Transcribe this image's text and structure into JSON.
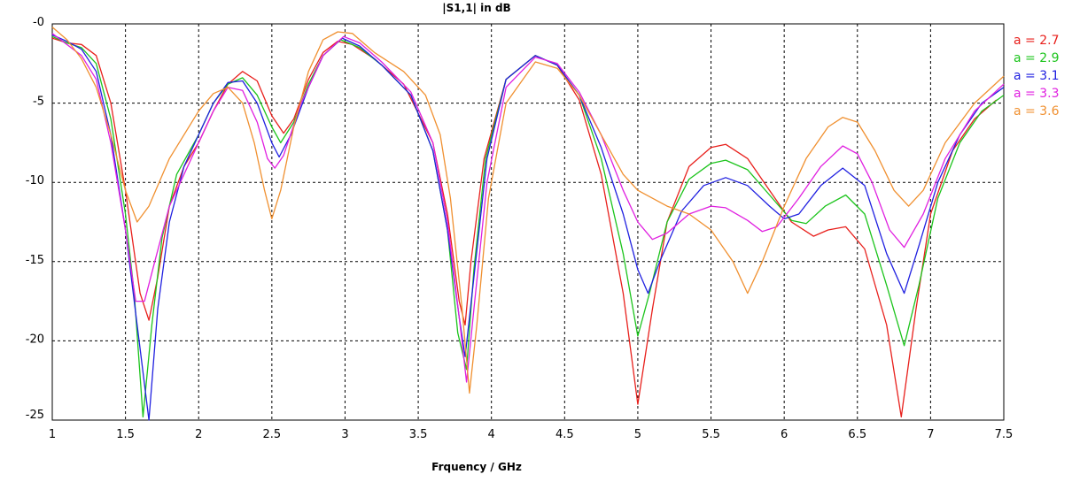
{
  "chart_data": {
    "type": "line",
    "title": "|S1,1| in dB",
    "xlabel": "Frquency / GHz",
    "ylabel": "",
    "xlim": [
      1,
      7.5
    ],
    "ylim": [
      -25,
      0
    ],
    "x_ticks": [
      1,
      1.5,
      2,
      2.5,
      3,
      3.5,
      4,
      4.5,
      5,
      5.5,
      6,
      6.5,
      7,
      7.5
    ],
    "x_tick_labels": [
      "1",
      "1.5",
      "2",
      "2.5",
      "3",
      "3.5",
      "4",
      "4.5",
      "5",
      "5.5",
      "6",
      "6.5",
      "7",
      "7.5"
    ],
    "y_ticks": [
      0,
      -5,
      -10,
      -15,
      -20,
      -25
    ],
    "y_tick_labels": [
      "-0",
      "-5",
      "-10",
      "-15",
      "-20",
      "-25"
    ],
    "grid": true,
    "legend_position": "right",
    "series": [
      {
        "name": "a = 2.7",
        "color": "#e8201c",
        "points": [
          [
            1,
            -0.9
          ],
          [
            1.1,
            -1.2
          ],
          [
            1.2,
            -1.3
          ],
          [
            1.3,
            -2.0
          ],
          [
            1.4,
            -5.0
          ],
          [
            1.5,
            -10.5
          ],
          [
            1.6,
            -17.0
          ],
          [
            1.66,
            -18.7
          ],
          [
            1.72,
            -16.0
          ],
          [
            1.8,
            -11.5
          ],
          [
            1.9,
            -9.0
          ],
          [
            2.0,
            -7.5
          ],
          [
            2.1,
            -5.5
          ],
          [
            2.2,
            -3.8
          ],
          [
            2.3,
            -3.0
          ],
          [
            2.4,
            -3.6
          ],
          [
            2.5,
            -5.8
          ],
          [
            2.58,
            -6.9
          ],
          [
            2.65,
            -6.0
          ],
          [
            2.75,
            -3.5
          ],
          [
            2.85,
            -1.8
          ],
          [
            2.95,
            -1.1
          ],
          [
            3.05,
            -1.3
          ],
          [
            3.2,
            -2.2
          ],
          [
            3.4,
            -3.8
          ],
          [
            3.6,
            -7.5
          ],
          [
            3.7,
            -12.0
          ],
          [
            3.78,
            -17.5
          ],
          [
            3.82,
            -19.0
          ],
          [
            3.86,
            -15.0
          ],
          [
            3.95,
            -8.5
          ],
          [
            4.1,
            -3.5
          ],
          [
            4.3,
            -2.0
          ],
          [
            4.45,
            -2.6
          ],
          [
            4.6,
            -4.8
          ],
          [
            4.75,
            -9.5
          ],
          [
            4.9,
            -17.0
          ],
          [
            5.0,
            -24.0
          ],
          [
            5.1,
            -18.0
          ],
          [
            5.2,
            -12.5
          ],
          [
            5.35,
            -9.0
          ],
          [
            5.5,
            -7.8
          ],
          [
            5.6,
            -7.6
          ],
          [
            5.75,
            -8.5
          ],
          [
            5.9,
            -10.5
          ],
          [
            6.05,
            -12.5
          ],
          [
            6.2,
            -13.4
          ],
          [
            6.3,
            -13.0
          ],
          [
            6.42,
            -12.8
          ],
          [
            6.55,
            -14.2
          ],
          [
            6.7,
            -19.0
          ],
          [
            6.8,
            -24.8
          ],
          [
            6.9,
            -18.0
          ],
          [
            7.0,
            -12.0
          ],
          [
            7.15,
            -8.0
          ],
          [
            7.3,
            -6.0
          ],
          [
            7.45,
            -4.8
          ]
        ]
      },
      {
        "name": "a = 2.9",
        "color": "#1cc41c",
        "points": [
          [
            1,
            -0.8
          ],
          [
            1.1,
            -1.2
          ],
          [
            1.2,
            -1.5
          ],
          [
            1.3,
            -2.5
          ],
          [
            1.4,
            -6.0
          ],
          [
            1.5,
            -12.0
          ],
          [
            1.56,
            -17.0
          ],
          [
            1.62,
            -24.8
          ],
          [
            1.68,
            -19.0
          ],
          [
            1.75,
            -13.5
          ],
          [
            1.85,
            -9.5
          ],
          [
            2.0,
            -7.0
          ],
          [
            2.1,
            -5.0
          ],
          [
            2.2,
            -3.8
          ],
          [
            2.3,
            -3.4
          ],
          [
            2.4,
            -4.5
          ],
          [
            2.5,
            -6.5
          ],
          [
            2.56,
            -7.5
          ],
          [
            2.65,
            -6.2
          ],
          [
            2.75,
            -3.8
          ],
          [
            2.85,
            -2.0
          ],
          [
            2.97,
            -1.0
          ],
          [
            3.1,
            -1.5
          ],
          [
            3.25,
            -2.6
          ],
          [
            3.45,
            -4.5
          ],
          [
            3.6,
            -8.0
          ],
          [
            3.7,
            -13.0
          ],
          [
            3.77,
            -19.5
          ],
          [
            3.83,
            -21.8
          ],
          [
            3.88,
            -15.5
          ],
          [
            3.96,
            -8.5
          ],
          [
            4.1,
            -3.5
          ],
          [
            4.3,
            -2.0
          ],
          [
            4.45,
            -2.6
          ],
          [
            4.6,
            -4.5
          ],
          [
            4.75,
            -8.5
          ],
          [
            4.9,
            -14.5
          ],
          [
            5.0,
            -19.7
          ],
          [
            5.08,
            -17.0
          ],
          [
            5.2,
            -12.5
          ],
          [
            5.35,
            -9.8
          ],
          [
            5.5,
            -8.8
          ],
          [
            5.6,
            -8.6
          ],
          [
            5.75,
            -9.2
          ],
          [
            5.9,
            -10.8
          ],
          [
            6.05,
            -12.4
          ],
          [
            6.15,
            -12.6
          ],
          [
            6.28,
            -11.5
          ],
          [
            6.42,
            -10.8
          ],
          [
            6.55,
            -12.0
          ],
          [
            6.7,
            -16.5
          ],
          [
            6.82,
            -20.3
          ],
          [
            6.92,
            -16.5
          ],
          [
            7.05,
            -11.0
          ],
          [
            7.2,
            -7.5
          ],
          [
            7.35,
            -5.5
          ],
          [
            7.5,
            -4.5
          ]
        ]
      },
      {
        "name": "a = 3.1",
        "color": "#2020e0",
        "points": [
          [
            1,
            -0.7
          ],
          [
            1.1,
            -1.1
          ],
          [
            1.2,
            -1.6
          ],
          [
            1.3,
            -3.0
          ],
          [
            1.4,
            -7.0
          ],
          [
            1.5,
            -13.0
          ],
          [
            1.58,
            -19.0
          ],
          [
            1.66,
            -25.0
          ],
          [
            1.72,
            -18.0
          ],
          [
            1.8,
            -12.5
          ],
          [
            1.9,
            -9.0
          ],
          [
            2.0,
            -7.0
          ],
          [
            2.1,
            -5.0
          ],
          [
            2.2,
            -3.7
          ],
          [
            2.3,
            -3.6
          ],
          [
            2.4,
            -5.0
          ],
          [
            2.5,
            -7.5
          ],
          [
            2.55,
            -8.4
          ],
          [
            2.63,
            -7.0
          ],
          [
            2.75,
            -4.0
          ],
          [
            2.85,
            -2.0
          ],
          [
            2.98,
            -0.9
          ],
          [
            3.1,
            -1.4
          ],
          [
            3.25,
            -2.6
          ],
          [
            3.45,
            -4.5
          ],
          [
            3.6,
            -8.0
          ],
          [
            3.7,
            -13.0
          ],
          [
            3.78,
            -18.5
          ],
          [
            3.82,
            -21.0
          ],
          [
            3.88,
            -16.0
          ],
          [
            3.97,
            -8.5
          ],
          [
            4.1,
            -3.5
          ],
          [
            4.3,
            -2.0
          ],
          [
            4.45,
            -2.6
          ],
          [
            4.6,
            -4.5
          ],
          [
            4.75,
            -7.8
          ],
          [
            4.9,
            -12.0
          ],
          [
            5.0,
            -15.5
          ],
          [
            5.07,
            -17.0
          ],
          [
            5.15,
            -15.0
          ],
          [
            5.3,
            -11.8
          ],
          [
            5.45,
            -10.2
          ],
          [
            5.6,
            -9.7
          ],
          [
            5.75,
            -10.2
          ],
          [
            5.9,
            -11.5
          ],
          [
            6.0,
            -12.3
          ],
          [
            6.1,
            -12.0
          ],
          [
            6.25,
            -10.2
          ],
          [
            6.4,
            -9.1
          ],
          [
            6.55,
            -10.2
          ],
          [
            6.7,
            -14.5
          ],
          [
            6.82,
            -17.0
          ],
          [
            6.92,
            -14.0
          ],
          [
            7.05,
            -10.0
          ],
          [
            7.2,
            -7.0
          ],
          [
            7.35,
            -5.0
          ],
          [
            7.5,
            -4.0
          ]
        ]
      },
      {
        "name": "a = 3.3",
        "color": "#e020e0",
        "points": [
          [
            1,
            -0.6
          ],
          [
            1.1,
            -1.3
          ],
          [
            1.2,
            -2.0
          ],
          [
            1.3,
            -3.5
          ],
          [
            1.4,
            -7.5
          ],
          [
            1.5,
            -13.0
          ],
          [
            1.57,
            -17.5
          ],
          [
            1.63,
            -17.5
          ],
          [
            1.7,
            -15.0
          ],
          [
            1.8,
            -11.5
          ],
          [
            1.9,
            -9.5
          ],
          [
            2.0,
            -7.5
          ],
          [
            2.1,
            -5.5
          ],
          [
            2.2,
            -4.0
          ],
          [
            2.3,
            -4.2
          ],
          [
            2.4,
            -6.2
          ],
          [
            2.47,
            -8.5
          ],
          [
            2.52,
            -9.1
          ],
          [
            2.58,
            -8.3
          ],
          [
            2.7,
            -5.0
          ],
          [
            2.85,
            -2.0
          ],
          [
            2.99,
            -0.8
          ],
          [
            3.1,
            -1.2
          ],
          [
            3.25,
            -2.4
          ],
          [
            3.45,
            -4.3
          ],
          [
            3.6,
            -7.5
          ],
          [
            3.7,
            -12.5
          ],
          [
            3.78,
            -18.5
          ],
          [
            3.83,
            -22.6
          ],
          [
            3.88,
            -18.0
          ],
          [
            3.97,
            -10.0
          ],
          [
            4.1,
            -4.0
          ],
          [
            4.3,
            -2.1
          ],
          [
            4.45,
            -2.5
          ],
          [
            4.6,
            -4.3
          ],
          [
            4.75,
            -7.0
          ],
          [
            4.9,
            -10.5
          ],
          [
            5.0,
            -12.5
          ],
          [
            5.1,
            -13.6
          ],
          [
            5.2,
            -13.2
          ],
          [
            5.35,
            -12.0
          ],
          [
            5.5,
            -11.5
          ],
          [
            5.6,
            -11.6
          ],
          [
            5.75,
            -12.4
          ],
          [
            5.85,
            -13.1
          ],
          [
            5.95,
            -12.8
          ],
          [
            6.1,
            -11.0
          ],
          [
            6.25,
            -9.0
          ],
          [
            6.4,
            -7.7
          ],
          [
            6.5,
            -8.2
          ],
          [
            6.6,
            -10.0
          ],
          [
            6.72,
            -13.0
          ],
          [
            6.82,
            -14.1
          ],
          [
            6.95,
            -12.0
          ],
          [
            7.1,
            -8.5
          ],
          [
            7.3,
            -5.5
          ],
          [
            7.5,
            -3.8
          ]
        ]
      },
      {
        "name": "a = 3.6",
        "color": "#f09030",
        "points": [
          [
            1,
            -0.2
          ],
          [
            1.1,
            -1.0
          ],
          [
            1.2,
            -2.2
          ],
          [
            1.3,
            -4.0
          ],
          [
            1.4,
            -7.0
          ],
          [
            1.5,
            -10.5
          ],
          [
            1.58,
            -12.5
          ],
          [
            1.66,
            -11.5
          ],
          [
            1.8,
            -8.5
          ],
          [
            2.0,
            -5.5
          ],
          [
            2.1,
            -4.4
          ],
          [
            2.2,
            -4.0
          ],
          [
            2.3,
            -5.0
          ],
          [
            2.38,
            -7.5
          ],
          [
            2.45,
            -10.5
          ],
          [
            2.5,
            -12.3
          ],
          [
            2.56,
            -10.5
          ],
          [
            2.65,
            -6.5
          ],
          [
            2.75,
            -3.0
          ],
          [
            2.85,
            -1.0
          ],
          [
            2.95,
            -0.5
          ],
          [
            3.05,
            -0.6
          ],
          [
            3.2,
            -1.8
          ],
          [
            3.4,
            -3.0
          ],
          [
            3.55,
            -4.5
          ],
          [
            3.65,
            -7.0
          ],
          [
            3.72,
            -11.0
          ],
          [
            3.8,
            -18.0
          ],
          [
            3.85,
            -23.3
          ],
          [
            3.9,
            -19.0
          ],
          [
            3.98,
            -11.0
          ],
          [
            4.1,
            -5.0
          ],
          [
            4.3,
            -2.4
          ],
          [
            4.45,
            -2.8
          ],
          [
            4.6,
            -4.5
          ],
          [
            4.75,
            -7.0
          ],
          [
            4.9,
            -9.5
          ],
          [
            5.0,
            -10.5
          ],
          [
            5.2,
            -11.5
          ],
          [
            5.35,
            -12.0
          ],
          [
            5.5,
            -13.0
          ],
          [
            5.65,
            -15.0
          ],
          [
            5.75,
            -17.0
          ],
          [
            5.85,
            -15.0
          ],
          [
            6.0,
            -11.5
          ],
          [
            6.15,
            -8.5
          ],
          [
            6.3,
            -6.5
          ],
          [
            6.4,
            -5.9
          ],
          [
            6.5,
            -6.2
          ],
          [
            6.62,
            -8.0
          ],
          [
            6.75,
            -10.5
          ],
          [
            6.85,
            -11.5
          ],
          [
            6.95,
            -10.5
          ],
          [
            7.1,
            -7.5
          ],
          [
            7.3,
            -5.0
          ],
          [
            7.5,
            -3.3
          ]
        ]
      }
    ]
  }
}
